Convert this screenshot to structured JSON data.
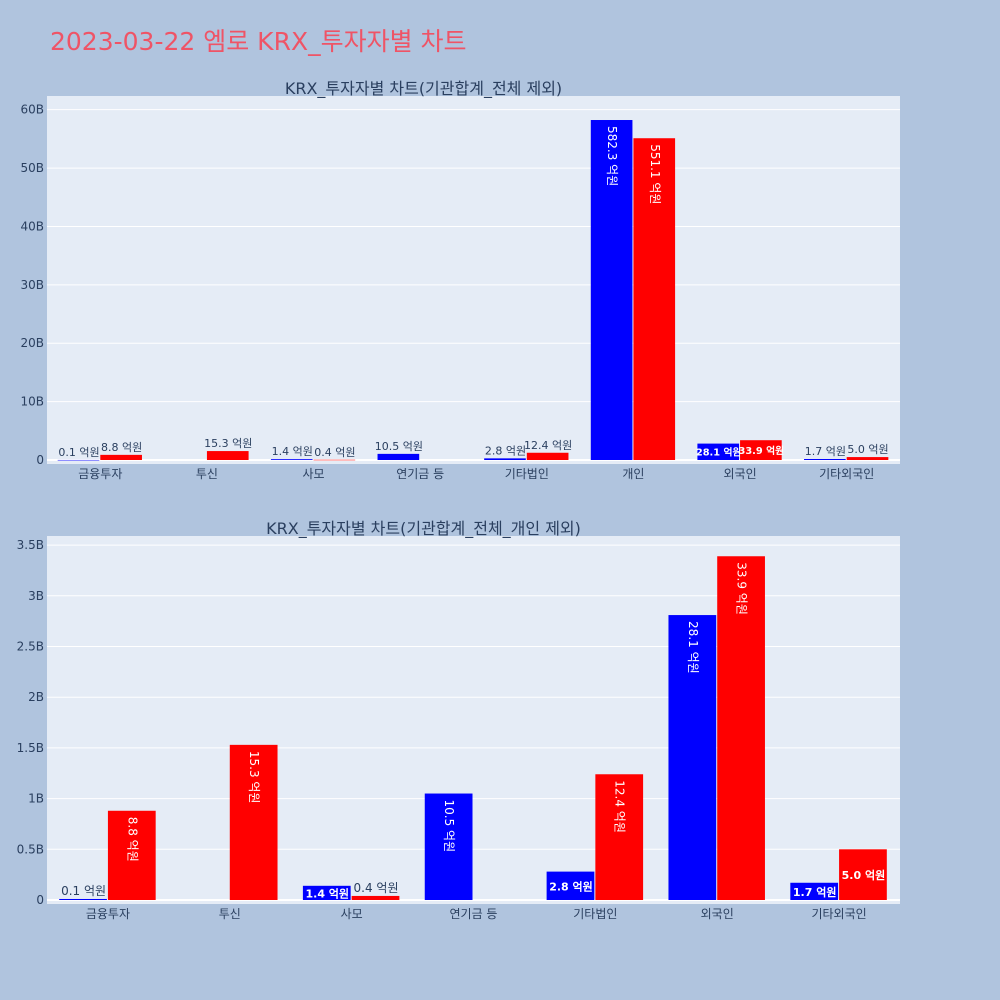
{
  "page_title": "2023-03-22 엠로 KRX_투자자별 차트",
  "colors": {
    "background": "#b0c4de",
    "plot_bg": "#e5ecf6",
    "buy": "#0000ff",
    "sell": "#ff0000",
    "title": "#ef5466",
    "text": "#2a3f5f"
  },
  "chart_data": [
    {
      "type": "bar",
      "title": "KRX_투자자별 차트(기관합계_전체 제외)",
      "categories": [
        "금융투자",
        "투신",
        "사모",
        "연기금 등",
        "기타법인",
        "개인",
        "외국인",
        "기타외국인"
      ],
      "y_ticks": [
        "0",
        "10B",
        "20B",
        "30B",
        "40B",
        "50B",
        "60B"
      ],
      "ylim": [
        0,
        62000000000
      ],
      "series": [
        {
          "color": "#0000ff",
          "values": [
            10000000,
            0,
            140000000,
            1050000000,
            280000000,
            58230000000,
            2810000000,
            170000000
          ],
          "labels": [
            "0.1 억원",
            "",
            "1.4 억원",
            "10.5 억원",
            "2.8 억원",
            "582.3 억원",
            "28.1 억원",
            "1.7 억원"
          ]
        },
        {
          "color": "#ff0000",
          "values": [
            880000000,
            1530000000,
            40000000,
            0,
            1240000000,
            55110000000,
            3390000000,
            500000000
          ],
          "labels": [
            "8.8 억원",
            "15.3 억원",
            "0.4 억원",
            "",
            "12.4 억원",
            "551.1 억원",
            "33.9 억원",
            "5.0 억원"
          ]
        }
      ]
    },
    {
      "type": "bar",
      "title": "KRX_투자자별 차트(기관합계_전체_개인 제외)",
      "categories": [
        "금융투자",
        "투신",
        "사모",
        "연기금 등",
        "기타법인",
        "외국인",
        "기타외국인"
      ],
      "y_ticks": [
        "0",
        "0.5B",
        "1B",
        "1.5B",
        "2B",
        "2.5B",
        "3B",
        "3.5B"
      ],
      "ylim": [
        0,
        3570000000
      ],
      "series": [
        {
          "color": "#0000ff",
          "values": [
            10000000,
            0,
            140000000,
            1050000000,
            280000000,
            2810000000,
            170000000
          ],
          "labels": [
            "0.1 억원",
            "",
            "1.4 억원",
            "10.5 억원",
            "2.8 억원",
            "28.1 억원",
            "1.7 억원"
          ]
        },
        {
          "color": "#ff0000",
          "values": [
            880000000,
            1530000000,
            40000000,
            0,
            1240000000,
            3390000000,
            500000000
          ],
          "labels": [
            "8.8 억원",
            "15.3 억원",
            "0.4 억원",
            "",
            "12.4 억원",
            "33.9 억원",
            "5.0 억원"
          ]
        }
      ]
    }
  ]
}
